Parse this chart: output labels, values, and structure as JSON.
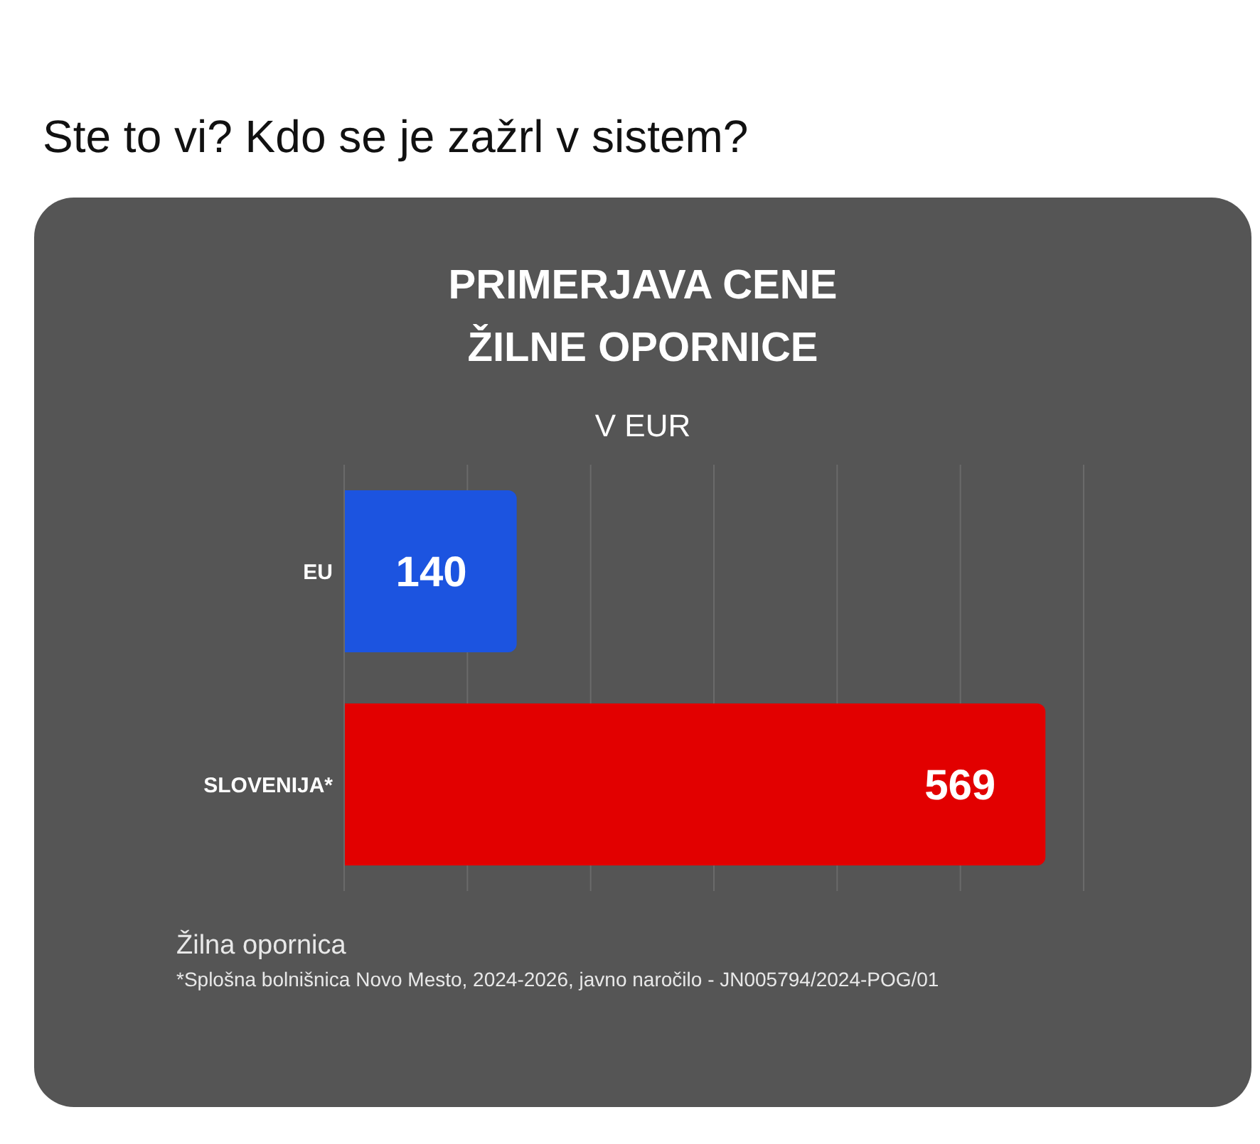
{
  "chart_data": {
    "type": "bar",
    "orientation": "horizontal",
    "title": "PRIMERJAVA CENE ŽILNE OPORNICE",
    "subtitle": "V EUR",
    "categories": [
      "EU",
      "SLOVENIJA*"
    ],
    "values": [
      140,
      569
    ],
    "colors": [
      "#1c54e0",
      "#e20000"
    ],
    "data_labels": true,
    "xlim": [
      0,
      600
    ],
    "xticks": [
      {
        "value": 0,
        "label": null
      },
      {
        "value": 100,
        "label": null
      },
      {
        "value": 200,
        "label": null
      },
      {
        "value": 300,
        "label": null
      },
      {
        "value": 400,
        "label": null
      },
      {
        "value": 500,
        "label": null
      },
      {
        "value": 600,
        "label": null
      }
    ],
    "grid": "x",
    "annotations": [
      "Ste to vi? Kdo se je zažrl v sistem?",
      "Žilna opornica",
      "*Splošna bolnišnica Novo Mesto, 2024-2026, javno naročilo - JN005794/2024-POG/01"
    ]
  }
}
